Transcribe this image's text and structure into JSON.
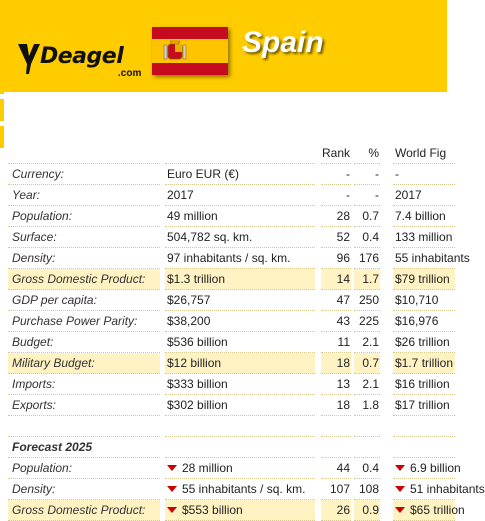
{
  "header": {
    "brand": "Deagel",
    "brand_suffix": ".com",
    "country": "Spain"
  },
  "columns": {
    "rank": "Rank",
    "pct": "%",
    "world": "World Fig"
  },
  "rows": [
    {
      "label": "Currency:",
      "value": "Euro EUR (€)",
      "rank": "-",
      "pct": "-",
      "world": "-"
    },
    {
      "label": "Year:",
      "value": "2017",
      "rank": "-",
      "pct": "-",
      "world": "2017"
    },
    {
      "label": "Population:",
      "value": "49 million",
      "rank": "28",
      "pct": "0.7",
      "world": "7.4 billion"
    },
    {
      "label": "Surface:",
      "value": "504,782 sq. km.",
      "rank": "52",
      "pct": "0.4",
      "world": "133 million"
    },
    {
      "label": "Density:",
      "value": "97 inhabitants / sq. km.",
      "rank": "96",
      "pct": "176",
      "world": "55 inhabitants"
    },
    {
      "label": "Gross Domestic Product:",
      "value": "$1.3 trillion",
      "rank": "14",
      "pct": "1.7",
      "world": "$79 trillion"
    },
    {
      "label": "GDP per capita:",
      "value": "$26,757",
      "rank": "47",
      "pct": "250",
      "world": "$10,710"
    },
    {
      "label": "Purchase Power Parity:",
      "value": "$38,200",
      "rank": "43",
      "pct": "225",
      "world": "$16,976"
    },
    {
      "label": "Budget:",
      "value": "$536 billion",
      "rank": "11",
      "pct": "2.1",
      "world": "$26 trillion"
    },
    {
      "label": "Military Budget:",
      "value": "$12 billion",
      "rank": "18",
      "pct": "0.7",
      "world": "$1.7 trillion"
    },
    {
      "label": "Imports:",
      "value": "$333 billion",
      "rank": "13",
      "pct": "2.1",
      "world": "$16 trillion"
    },
    {
      "label": "Exports:",
      "value": "$302 billion",
      "rank": "18",
      "pct": "1.8",
      "world": "$17 trillion"
    }
  ],
  "forecast": {
    "title": "Forecast 2025",
    "rows": [
      {
        "label": "Population:",
        "value": "28 million",
        "rank": "44",
        "pct": "0.4",
        "world": "6.9 billion"
      },
      {
        "label": "Density:",
        "value": "55 inhabitants / sq. km.",
        "rank": "107",
        "pct": "108",
        "world": "51 inhabitants"
      },
      {
        "label": "Gross Domestic Product:",
        "value": "$553 billion",
        "rank": "26",
        "pct": "0.9",
        "world": "$65 trillion"
      }
    ]
  },
  "colors": {
    "banner": "#ffcc00",
    "highlight_row": "#fff3c4",
    "down_arrow": "#cc0000"
  }
}
